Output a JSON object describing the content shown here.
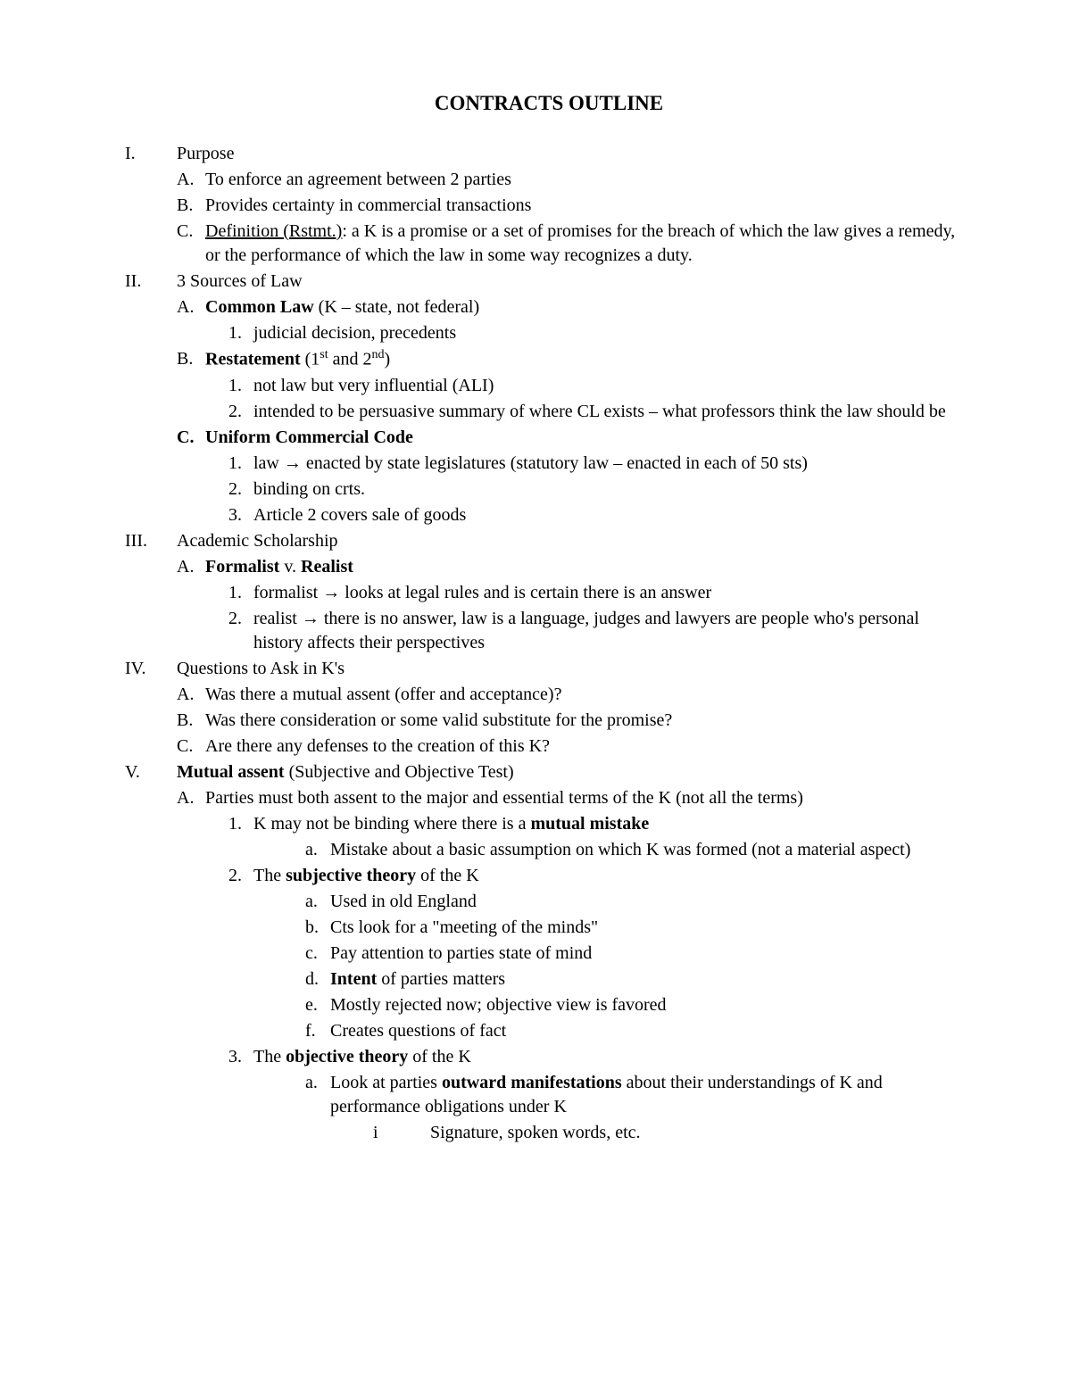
{
  "title": "CONTRACTS OUTLINE",
  "I": {
    "num": "I.",
    "head": "Purpose",
    "A": {
      "num": "A.",
      "text": "To enforce an agreement between 2 parties"
    },
    "B": {
      "num": "B.",
      "text": "Provides certainty in commercial transactions"
    },
    "C": {
      "num": "C.",
      "def_label": "Definition (Rstmt.)",
      "text": ":  a K is a promise or a set of promises for the breach of which the law gives a remedy, or the performance of which the law in some way recognizes a duty."
    }
  },
  "II": {
    "num": "II.",
    "head": "3 Sources of Law",
    "A": {
      "num": "A.",
      "bold": "Common Law",
      "rest": " (K – state, not federal)",
      "n1": {
        "num": "1.",
        "text": "judicial decision, precedents"
      }
    },
    "B": {
      "num": "B.",
      "bold": "Restatement",
      "rest_pre": " (1",
      "sup1": "st",
      "mid": " and 2",
      "sup2": "nd",
      "rest_post": ")",
      "n1": {
        "num": "1.",
        "text": "not law but very influential (ALI)"
      },
      "n2": {
        "num": "2.",
        "text": "intended to be persuasive summary of where CL exists – what professors think the law should be"
      }
    },
    "C": {
      "num": "C.",
      "bold": "Uniform Commercial Code",
      "n1": {
        "num": "1.",
        "pre": "law ",
        "arrow": "→",
        "post": " enacted by state legislatures (statutory law – enacted in each of 50 sts)"
      },
      "n2": {
        "num": "2.",
        "text": "binding on crts."
      },
      "n3": {
        "num": "3.",
        "text": "Article 2 covers sale of goods"
      }
    }
  },
  "III": {
    "num": "III.",
    "head": "Academic Scholarship",
    "A": {
      "num": "A.",
      "b1": "Formalist",
      "mid": " v. ",
      "b2": "Realist",
      "n1": {
        "num": "1.",
        "pre": "formalist ",
        "arrow": "→",
        "post": " looks at legal rules and is certain there is an answer"
      },
      "n2": {
        "num": "2.",
        "pre": "realist ",
        "arrow": "→",
        "post": " there is no answer, law is a language, judges and lawyers are people who's personal history affects their perspectives"
      }
    }
  },
  "IV": {
    "num": "IV.",
    "head": "Questions to Ask in K's",
    "A": {
      "num": "A.",
      "text": "Was there a mutual assent (offer and acceptance)?"
    },
    "B": {
      "num": "B.",
      "text": "Was there consideration or some valid substitute for the promise?"
    },
    "C": {
      "num": "C.",
      "text": "Are there any defenses to the creation of this K?"
    }
  },
  "V": {
    "num": "V.",
    "bold": "Mutual assent",
    "rest": " (Subjective and Objective Test)",
    "A": {
      "num": "A.",
      "text": "Parties must both assent to the major and essential terms of the K (not all the terms)",
      "n1": {
        "num": "1.",
        "pre": "K may not be binding where there is a ",
        "bold": "mutual mistake",
        "a": {
          "num": "a.",
          "text": "Mistake about a basic assumption on which K was formed (not a material aspect)"
        }
      },
      "n2": {
        "num": "2.",
        "pre": "The ",
        "bold": "subjective theory",
        "post": " of the K",
        "a": {
          "num": "a.",
          "text": "Used in old England"
        },
        "b": {
          "num": "b.",
          "text": "Cts look for a \"meeting of the minds\""
        },
        "c": {
          "num": "c.",
          "text": "Pay attention to parties state of mind"
        },
        "d": {
          "num": "d.",
          "bold": "Intent",
          "post": " of parties matters"
        },
        "e": {
          "num": "e.",
          "text": "Mostly rejected now; objective view is favored"
        },
        "f": {
          "num": "f.",
          "text": "Creates questions of fact"
        }
      },
      "n3": {
        "num": "3.",
        "pre": "The ",
        "bold": "objective theory",
        "post": " of the K",
        "a": {
          "num": "a.",
          "pre": "Look at parties ",
          "bold": "outward manifestations",
          "post": " about their understandings of K and performance obligations under K",
          "i": {
            "num": "i",
            "text": "Signature, spoken words, etc."
          }
        }
      }
    }
  }
}
